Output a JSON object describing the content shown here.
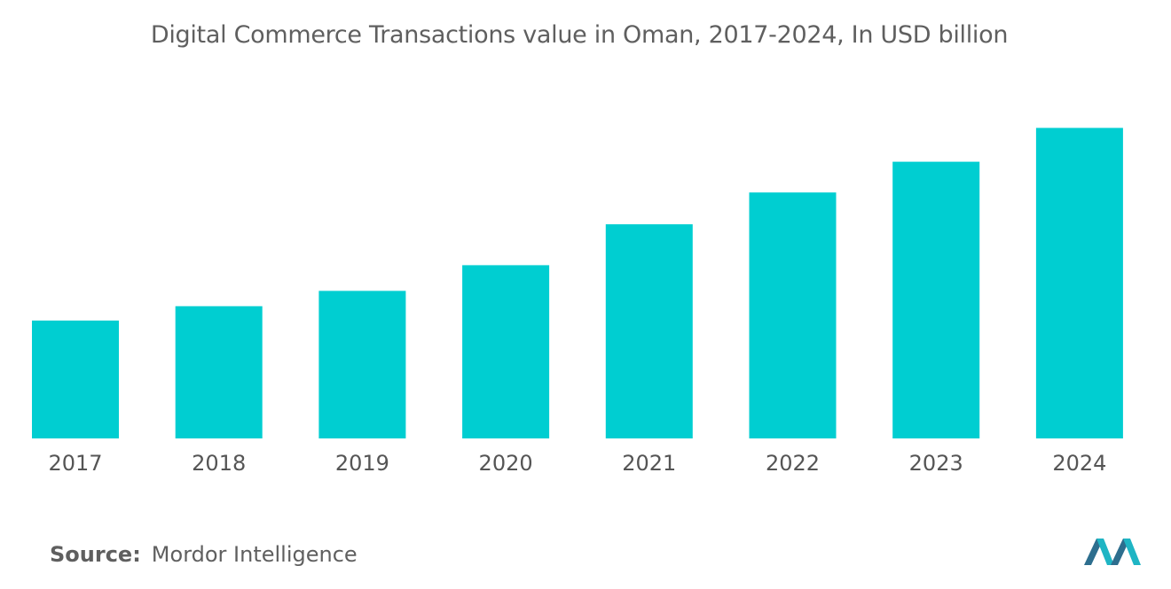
{
  "chart_data": {
    "type": "bar",
    "title": "Digital Commerce Transactions value in Oman, 2017-2024, In USD billion",
    "categories": [
      "2017",
      "2018",
      "2019",
      "2020",
      "2021",
      "2022",
      "2023",
      "2024"
    ],
    "values": [
      1.15,
      1.29,
      1.44,
      1.69,
      2.09,
      2.4,
      2.7,
      3.03
    ],
    "ylim": [
      0,
      3.5
    ],
    "xlabel": "",
    "ylabel": "",
    "grid": false,
    "legend": "none",
    "bar_color": "#00ced1"
  },
  "source": {
    "label": "Source:",
    "value": "Mordor Intelligence"
  },
  "logo": {
    "icon": "mordor-intelligence-logo",
    "colors": [
      "#2d6e8e",
      "#1fb5c4"
    ]
  }
}
